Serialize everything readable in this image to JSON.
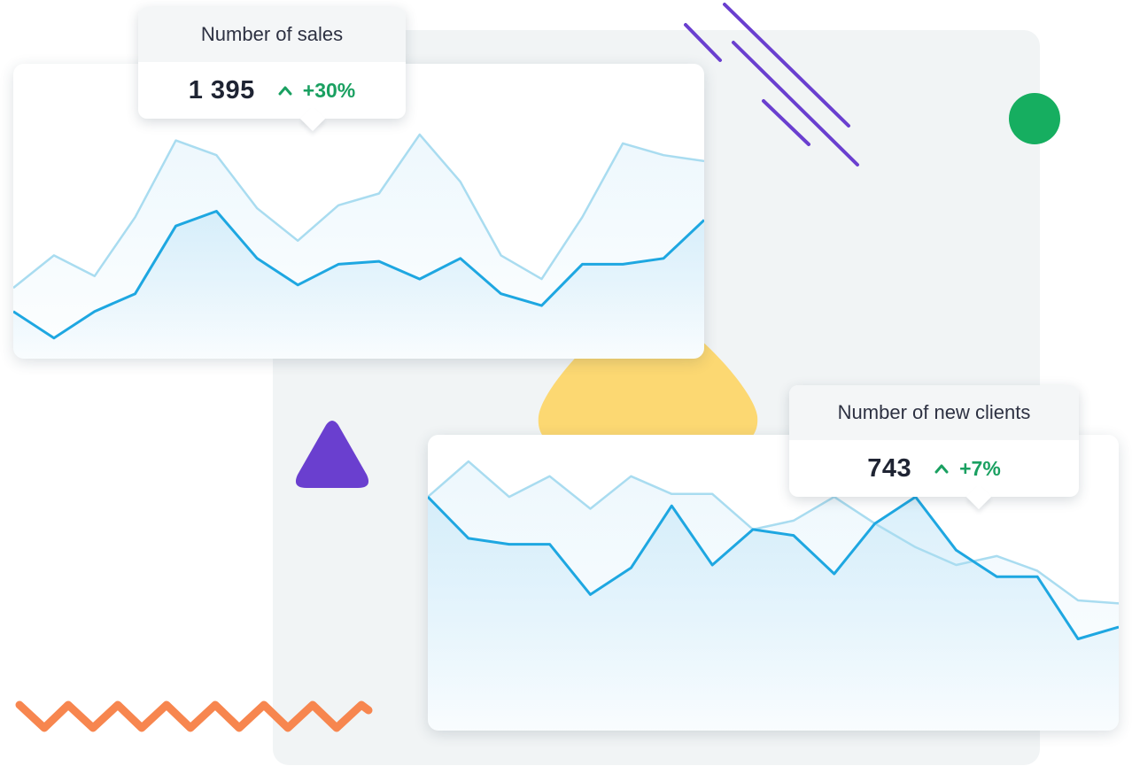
{
  "tooltips": {
    "sales": {
      "title": "Number of sales",
      "value": "1 395",
      "change": "+30%"
    },
    "clients": {
      "title": "Number of new clients",
      "value": "743",
      "change": "+7%"
    }
  },
  "colors": {
    "line_primary": "#1ea7e1",
    "line_secondary": "#a9dcf0",
    "area_fill": "#cdeaf9",
    "positive": "#1aa061",
    "panel_bg": "#f1f4f5",
    "deco_purple": "#6a3fcf",
    "deco_yellow": "#fcd872",
    "deco_green": "#16ae60",
    "deco_orange": "#f7864f"
  },
  "chart_data": [
    {
      "type": "area",
      "title": "",
      "x": [
        0,
        1,
        2,
        3,
        4,
        5,
        6,
        7,
        8,
        9,
        10,
        11,
        12,
        13,
        14,
        15,
        16,
        17
      ],
      "ylim": [
        0,
        100
      ],
      "grid": false,
      "series": [
        {
          "values": [
            24,
            35,
            28,
            48,
            74,
            69,
            51,
            40,
            52,
            56,
            76,
            60,
            35,
            27,
            48,
            73,
            69,
            67
          ]
        },
        {
          "values": [
            16,
            7,
            16,
            22,
            45,
            50,
            34,
            25,
            32,
            33,
            27,
            34,
            22,
            18,
            32,
            32,
            34,
            47
          ]
        }
      ]
    },
    {
      "type": "area",
      "title": "",
      "x": [
        0,
        1,
        2,
        3,
        4,
        5,
        6,
        7,
        8,
        9,
        10,
        11,
        12,
        13,
        14,
        15,
        16,
        17
      ],
      "ylim": [
        0,
        100
      ],
      "grid": false,
      "series": [
        {
          "values": [
            79,
            91,
            79,
            86,
            75,
            86,
            80,
            80,
            68,
            71,
            79,
            70,
            62,
            56,
            59,
            54,
            44,
            43
          ]
        },
        {
          "values": [
            79,
            65,
            63,
            63,
            46,
            55,
            76,
            56,
            68,
            66,
            53,
            70,
            79,
            61,
            52,
            52,
            31,
            35
          ]
        }
      ]
    }
  ]
}
